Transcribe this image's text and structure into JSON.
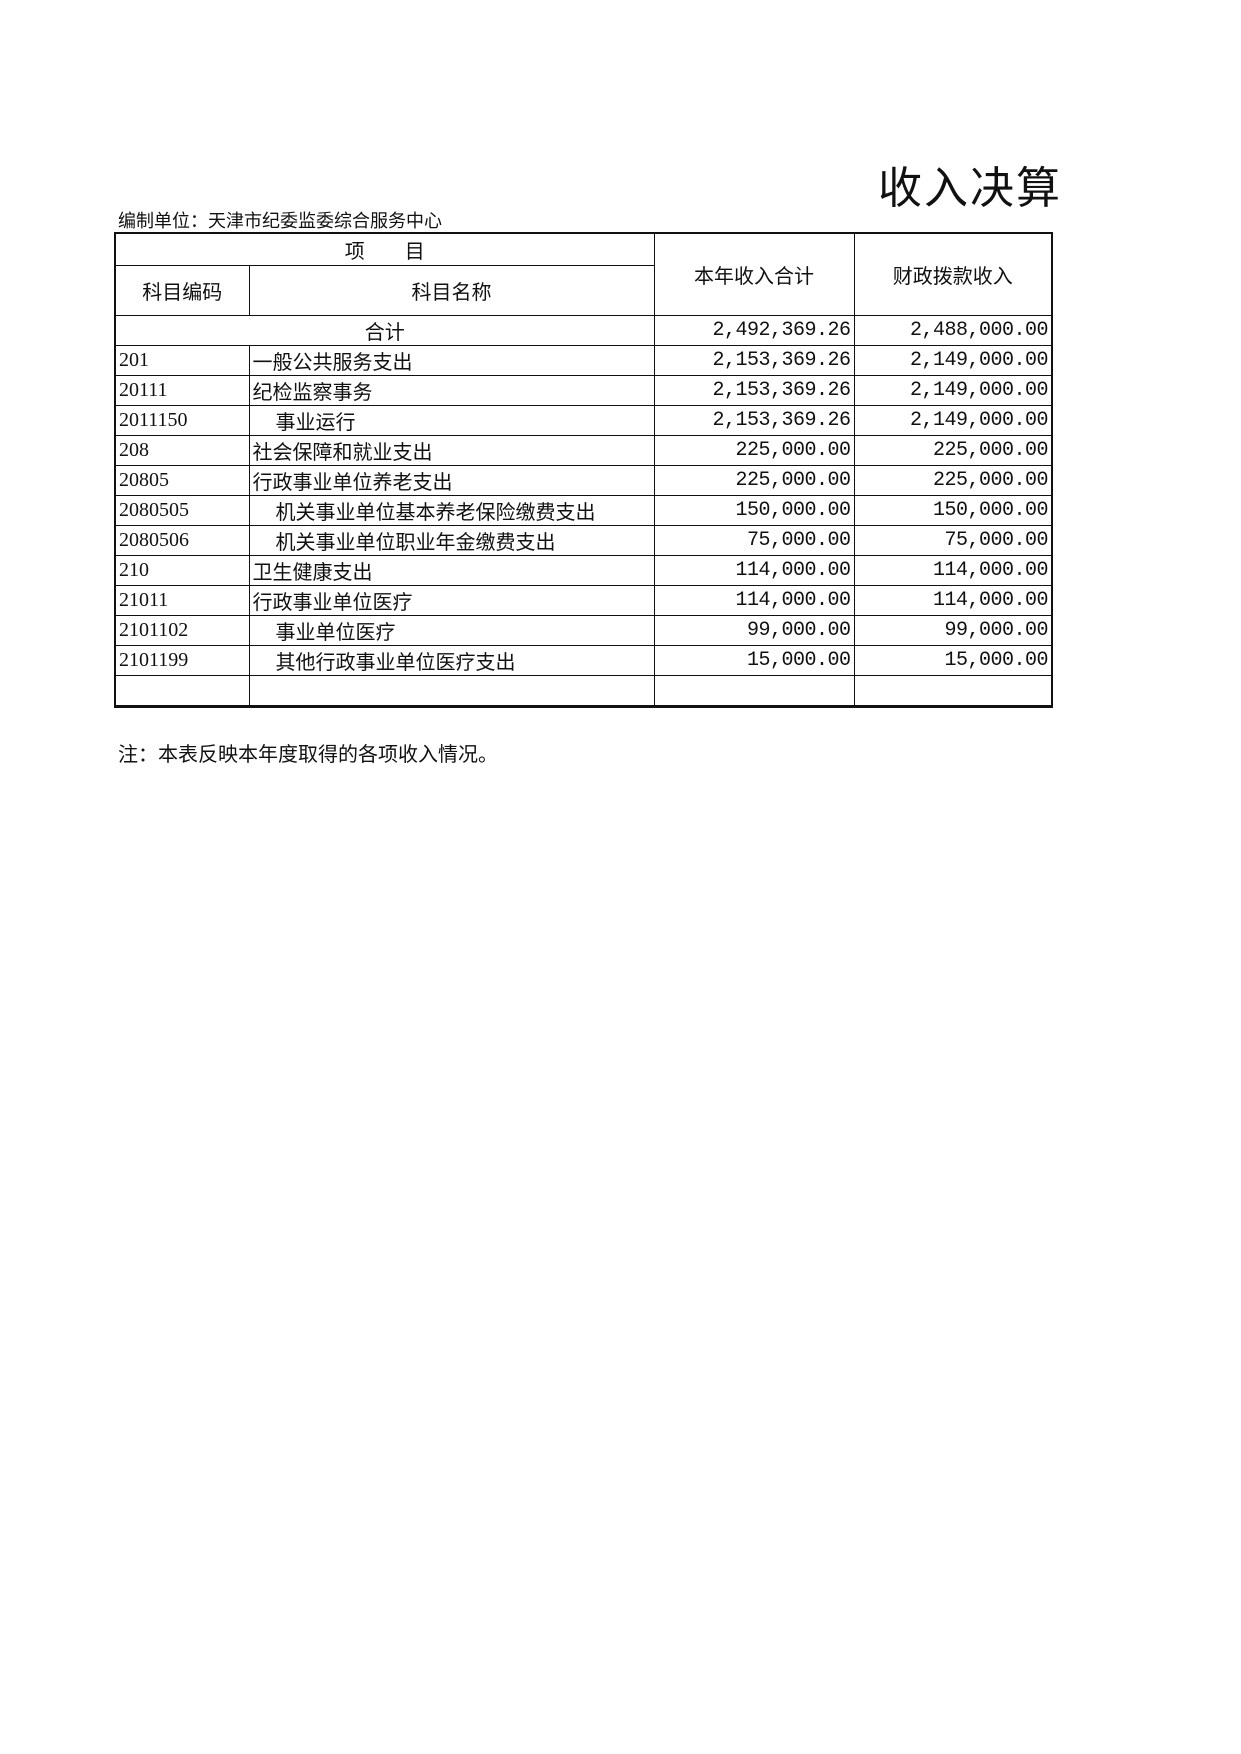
{
  "title": "收入决算",
  "org": "编制单位：天津市纪委监委综合服务中心",
  "header": {
    "item": "项　　目",
    "code": "科目编码",
    "name": "科目名称",
    "total": "本年收入合计",
    "fiscal": "财政拨款收入"
  },
  "total_row": {
    "label": "合计",
    "total": "2,492,369.26",
    "fiscal": "2,488,000.00"
  },
  "rows": [
    {
      "code": "201",
      "name": "一般公共服务支出",
      "total": "2,153,369.26",
      "fiscal": "2,149,000.00",
      "indent": false
    },
    {
      "code": "20111",
      "name": "纪检监察事务",
      "total": "2,153,369.26",
      "fiscal": "2,149,000.00",
      "indent": false
    },
    {
      "code": "2011150",
      "name": "事业运行",
      "total": "2,153,369.26",
      "fiscal": "2,149,000.00",
      "indent": true
    },
    {
      "code": "208",
      "name": "社会保障和就业支出",
      "total": "225,000.00",
      "fiscal": "225,000.00",
      "indent": false
    },
    {
      "code": "20805",
      "name": "行政事业单位养老支出",
      "total": "225,000.00",
      "fiscal": "225,000.00",
      "indent": false
    },
    {
      "code": "2080505",
      "name": "机关事业单位基本养老保险缴费支出",
      "total": "150,000.00",
      "fiscal": "150,000.00",
      "indent": true
    },
    {
      "code": "2080506",
      "name": "机关事业单位职业年金缴费支出",
      "total": "75,000.00",
      "fiscal": "75,000.00",
      "indent": true
    },
    {
      "code": "210",
      "name": "卫生健康支出",
      "total": "114,000.00",
      "fiscal": "114,000.00",
      "indent": false
    },
    {
      "code": "21011",
      "name": "行政事业单位医疗",
      "total": "114,000.00",
      "fiscal": "114,000.00",
      "indent": false
    },
    {
      "code": "2101102",
      "name": "事业单位医疗",
      "total": "99,000.00",
      "fiscal": "99,000.00",
      "indent": true
    },
    {
      "code": "2101199",
      "name": "其他行政事业单位医疗支出",
      "total": "15,000.00",
      "fiscal": "15,000.00",
      "indent": true
    }
  ],
  "note": "注：本表反映本年度取得的各项收入情况。"
}
